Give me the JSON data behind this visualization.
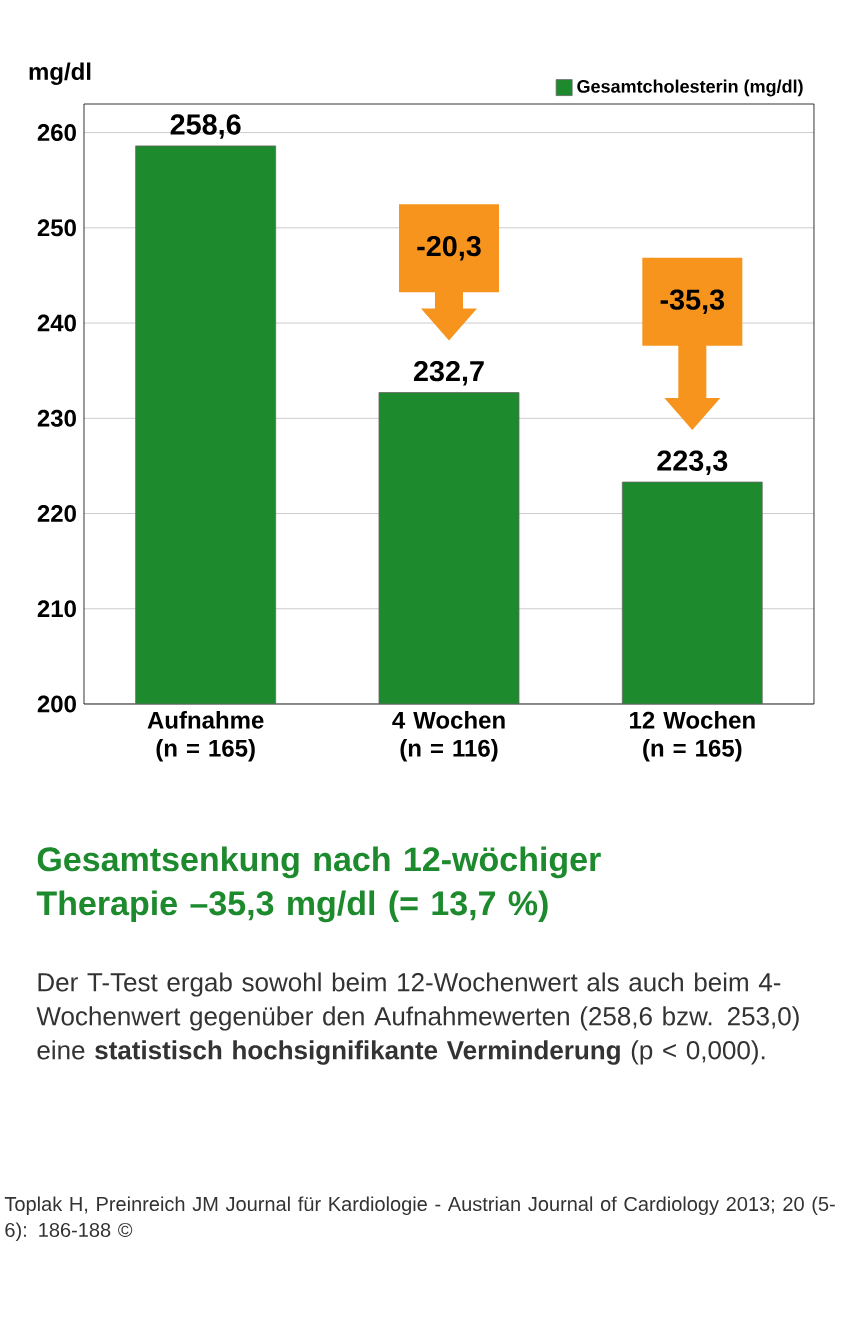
{
  "chart_data": {
    "type": "bar",
    "ylabel": "mg/dl",
    "title": "Gesamtsenkung nach 12-wöchiger Therapie –35,3 mg/dl (= 13,7 %)",
    "categories": [
      "Aufnahme (n = 165)",
      "4 Wochen (n = 116)",
      "12 Wochen (n = 165)"
    ],
    "series": [
      {
        "name": "Gesamtcholesterin (mg/dl)",
        "color": "#1e8a2e",
        "values": [
          258.6,
          232.7,
          223.3
        ],
        "value_labels": [
          "258,6",
          "232,7",
          "223,3"
        ]
      }
    ],
    "ylim": [
      200,
      263
    ],
    "yticks": [
      200,
      210,
      220,
      230,
      240,
      250,
      260
    ],
    "grid": "y",
    "legend": "top right",
    "annotations": [
      "-20,3",
      "-35,3",
      "Der T-Test ergab sowohl beim 12-Wochenwert als auch beim 4-Wochenwert gegenüber den Aufnahmewerten (258,6 bzw. 253,0) eine **statistisch hochsignifikante Verminderung** (p < 0,000).",
      "Toplak H, Preinreich JM Journal für Kardiologie - Austrian Journal of Cardiology 2013; 20 (5-6): 186-188 ©"
    ]
  }
}
